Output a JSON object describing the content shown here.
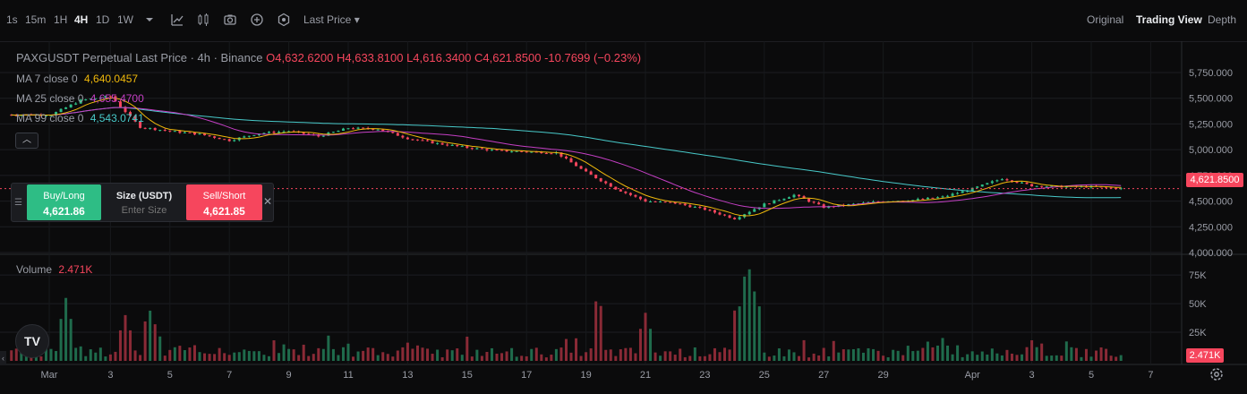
{
  "toolbar": {
    "intervals": [
      "1s",
      "15m",
      "1H",
      "4H",
      "1D",
      "1W"
    ],
    "active_interval": "4H",
    "price_type": "Last Price",
    "views": [
      "Original",
      "Trading View",
      "Depth"
    ],
    "active_view": "Trading View"
  },
  "legend": {
    "title": "PAXGUSDT Perpetual Last Price · 4h · Binance",
    "open": "O4,632.6200",
    "high": "H4,633.8100",
    "low": "L4,616.3400",
    "close": "C4,621.8500",
    "change": "-10.7699 (−0.23%)",
    "ma7_label": "MA 7 close 0",
    "ma7_value": "4,640.0457",
    "ma25_label": "MA 25 close 0",
    "ma25_value": "4,655.4700",
    "ma99_label": "MA 99 close 0",
    "ma99_value": "4,543.0741",
    "volume_label": "Volume",
    "volume_value": "2.471K"
  },
  "trade_panel": {
    "buy_label": "Buy/Long",
    "buy_price": "4,621.86",
    "size_label": "Size (USDT)",
    "size_placeholder": "Enter Size",
    "sell_label": "Sell/Short",
    "sell_price": "4,621.85"
  },
  "price_tags": {
    "last_price": "4,621.8500",
    "last_volume": "2.471K"
  },
  "logo_text": "TV",
  "colors": {
    "up": "#2ebd85",
    "down": "#f6465d",
    "vol_up": "#1f6b4c",
    "vol_down": "#8a2a36",
    "ma7": "#f0b90b",
    "ma25": "#c43fc4",
    "ma99": "#48c9c9"
  },
  "chart_data": {
    "type": "candlestick",
    "price_axis": {
      "labels": [
        "5,750.000",
        "5,500.000",
        "5,250.000",
        "5,000.000",
        "4,750.000",
        "4,500.000",
        "4,250.000",
        "4,000.000"
      ],
      "values": [
        5750,
        5500,
        5250,
        5000,
        4750,
        4500,
        4250,
        4000
      ],
      "range": [
        4000,
        5800
      ]
    },
    "volume_axis": {
      "labels": [
        "75K",
        "50K",
        "25K"
      ],
      "values": [
        75000,
        50000,
        25000
      ],
      "range": [
        0,
        90000
      ]
    },
    "x_axis": {
      "labels": [
        "Mar",
        "3",
        "5",
        "7",
        "9",
        "11",
        "13",
        "15",
        "17",
        "19",
        "21",
        "23",
        "25",
        "27",
        "29",
        "Apr",
        "3",
        "5",
        "7"
      ],
      "x_index": [
        0,
        2,
        4,
        6,
        8,
        10,
        12,
        14,
        16,
        18,
        20,
        22,
        24,
        26,
        28,
        31,
        33,
        35,
        37
      ]
    },
    "closes_by_day": [
      [
        0,
        5340
      ],
      [
        1,
        5480
      ],
      [
        2,
        5520
      ],
      [
        3,
        5220
      ],
      [
        4,
        5180
      ],
      [
        5,
        5150
      ],
      [
        6,
        5090
      ],
      [
        7,
        5160
      ],
      [
        8,
        5180
      ],
      [
        9,
        5130
      ],
      [
        10,
        5210
      ],
      [
        11,
        5200
      ],
      [
        12,
        5110
      ],
      [
        13,
        5060
      ],
      [
        14,
        5020
      ],
      [
        15,
        4990
      ],
      [
        16,
        4980
      ],
      [
        17,
        4970
      ],
      [
        18,
        4780
      ],
      [
        19,
        4620
      ],
      [
        20,
        4500
      ],
      [
        21,
        4480
      ],
      [
        22,
        4420
      ],
      [
        23,
        4330
      ],
      [
        24,
        4470
      ],
      [
        25,
        4560
      ],
      [
        26,
        4440
      ],
      [
        27,
        4470
      ],
      [
        28,
        4500
      ],
      [
        29,
        4510
      ],
      [
        30,
        4540
      ],
      [
        31,
        4620
      ],
      [
        32,
        4720
      ],
      [
        33,
        4650
      ],
      [
        34,
        4640
      ],
      [
        35,
        4640
      ],
      [
        36,
        4621.85
      ]
    ],
    "volume_peaks": [
      [
        0.5,
        55000
      ],
      [
        2.5,
        40000
      ],
      [
        3.3,
        47000
      ],
      [
        3.5,
        32000
      ],
      [
        18.4,
        60000
      ],
      [
        20,
        42000
      ],
      [
        23.4,
        85000
      ],
      [
        23.5,
        80000
      ],
      [
        23.7,
        65000
      ],
      [
        23.1,
        55000
      ],
      [
        30,
        20000
      ],
      [
        33,
        18000
      ]
    ],
    "last_price": 4621.85,
    "last_volume": 2471
  }
}
